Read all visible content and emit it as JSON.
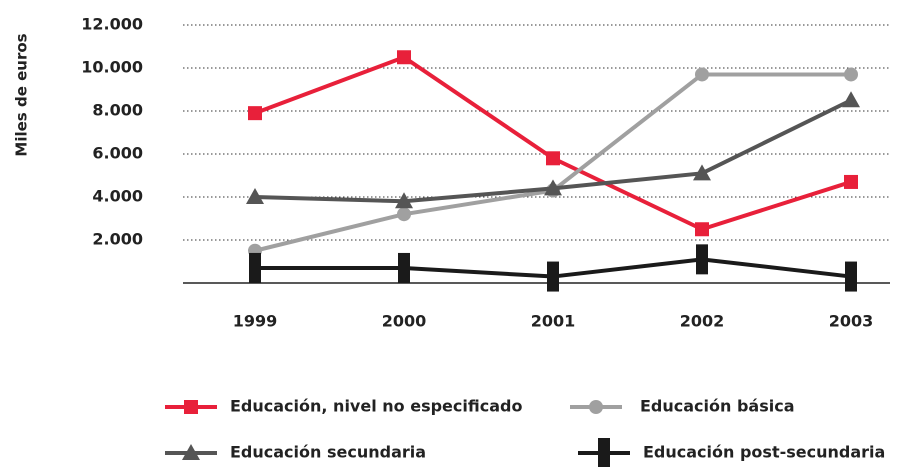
{
  "chart_data": {
    "type": "line",
    "y_label": "Miles de euros",
    "categories": [
      "1999",
      "2000",
      "2001",
      "2002",
      "2003"
    ],
    "series": [
      {
        "name": "Educación, nivel no especificado",
        "color": "#e8203a",
        "marker": "square",
        "values": [
          7900,
          10500,
          5800,
          2500,
          4700
        ]
      },
      {
        "name": "Educación básica",
        "color": "#a0a0a0",
        "marker": "circle",
        "values": [
          1500,
          3200,
          4300,
          9700,
          9700
        ]
      },
      {
        "name": "Educación secundaria",
        "color": "#555555",
        "marker": "triangle",
        "values": [
          4000,
          3800,
          4400,
          5100,
          8500
        ]
      },
      {
        "name": "Educación post-secundaria",
        "color": "#1a1a1a",
        "marker": "bar",
        "values": [
          700,
          700,
          300,
          1100,
          300
        ]
      }
    ],
    "ylim": [
      0,
      12000
    ],
    "yticks": [
      {
        "value": 2000,
        "label": "2.000"
      },
      {
        "value": 4000,
        "label": "4.000"
      },
      {
        "value": 6000,
        "label": "6.000"
      },
      {
        "value": 8000,
        "label": "8.000"
      },
      {
        "value": 10000,
        "label": "10.000"
      },
      {
        "value": 12000,
        "label": "12.000"
      }
    ],
    "grid": true
  }
}
